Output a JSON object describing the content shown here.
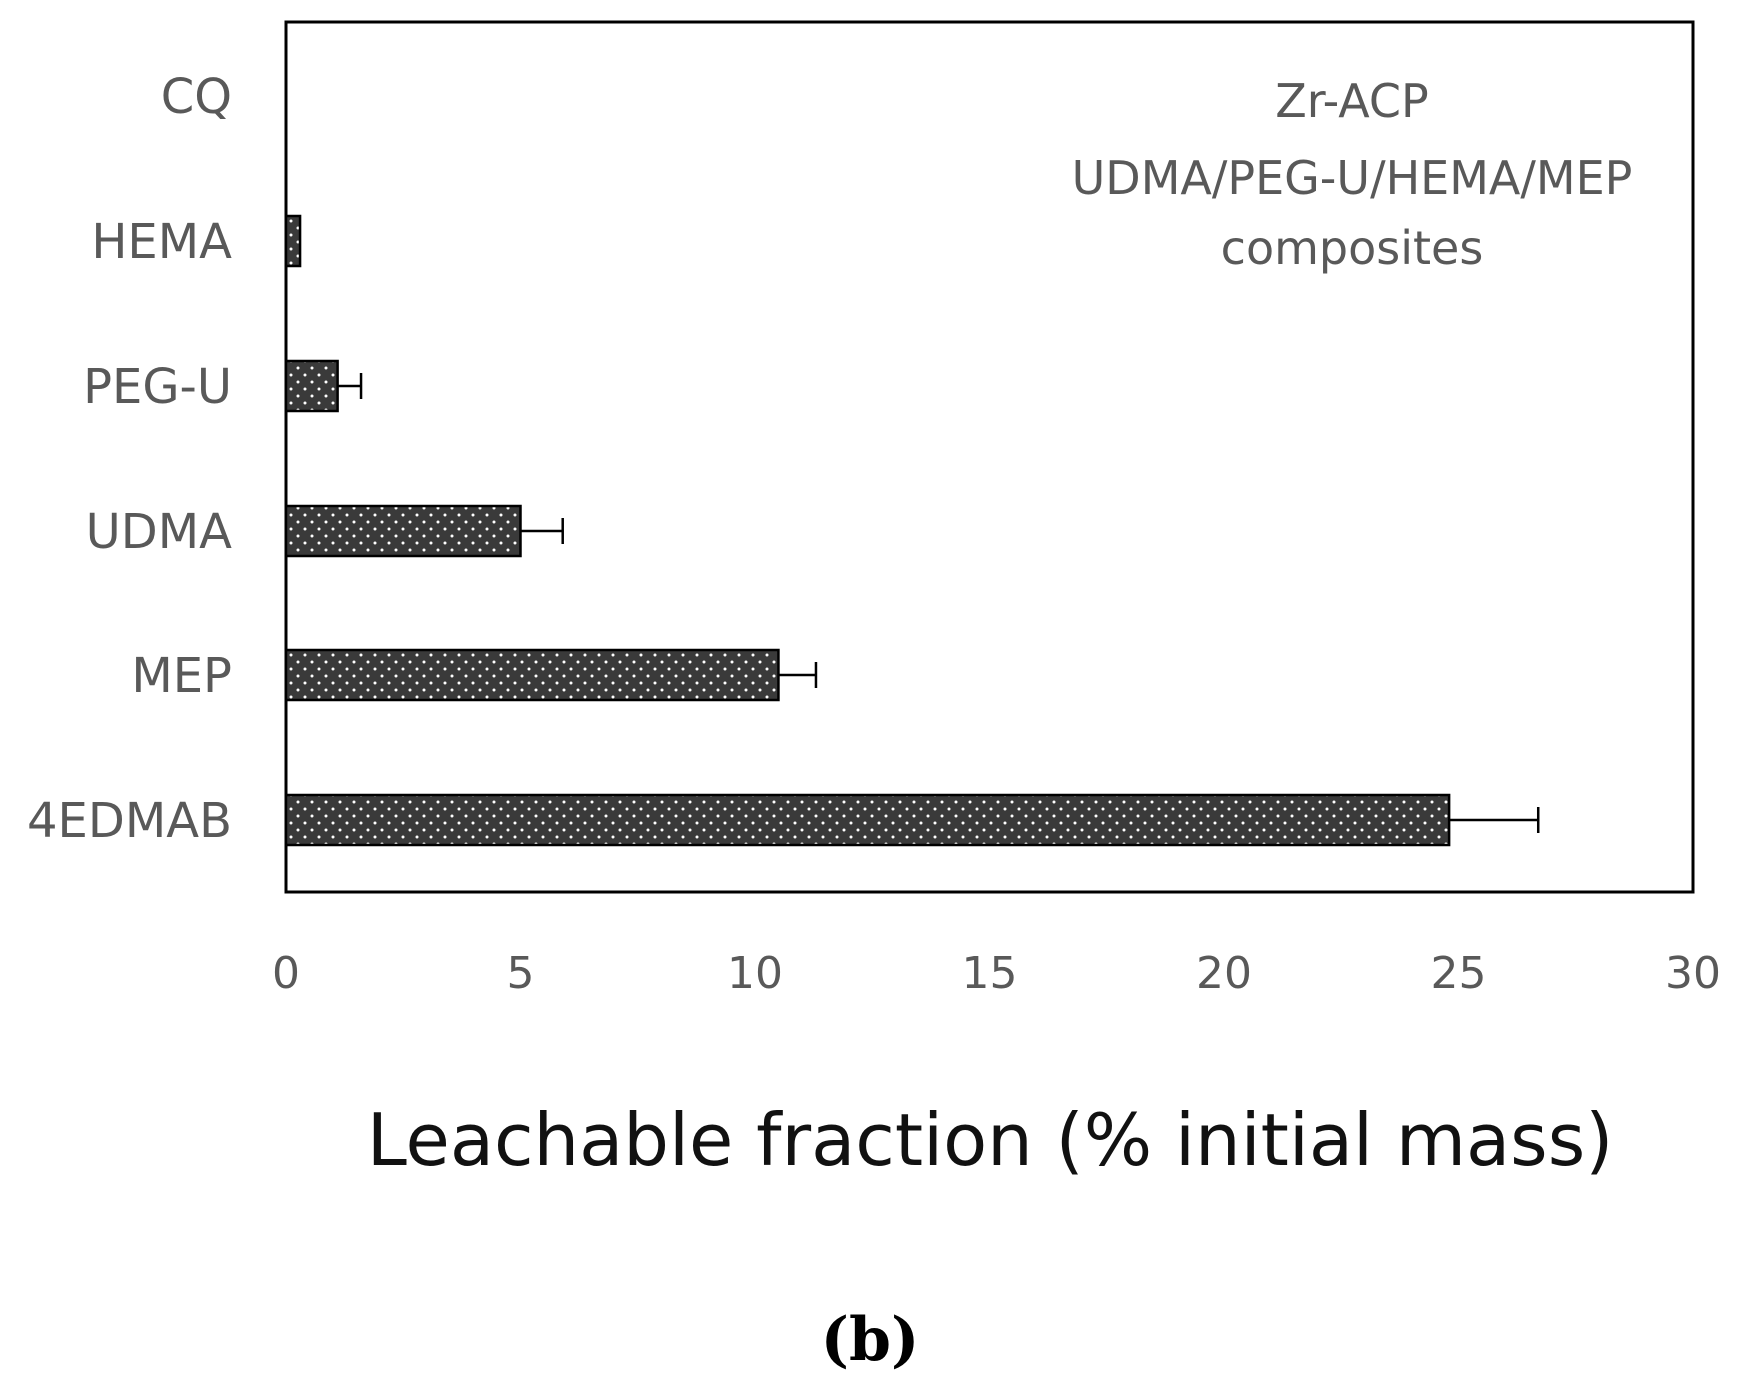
{
  "chart_data": {
    "type": "bar",
    "orientation": "horizontal",
    "categories": [
      "CQ",
      "HEMA",
      "PEG-U",
      "UDMA",
      "MEP",
      "4EDMAB"
    ],
    "values": [
      0,
      0.3,
      1.1,
      5.0,
      10.5,
      24.8
    ],
    "errors": [
      0,
      0,
      0.5,
      0.9,
      0.8,
      1.9
    ],
    "xlabel": "Leachable fraction (% initial mass)",
    "ylabel": "",
    "xlim": [
      0,
      30
    ],
    "xticks": [
      0,
      5,
      10,
      15,
      20,
      25,
      30
    ],
    "annotation": [
      "Zr-ACP",
      "UDMA/PEG-U/HEMA/MEP",
      "composites"
    ],
    "annotation_position": "top-right",
    "grid": false,
    "legend": "none",
    "bar_color": "#3a3a3a",
    "bar_pattern": "dotted",
    "panel_label": "(b)"
  }
}
